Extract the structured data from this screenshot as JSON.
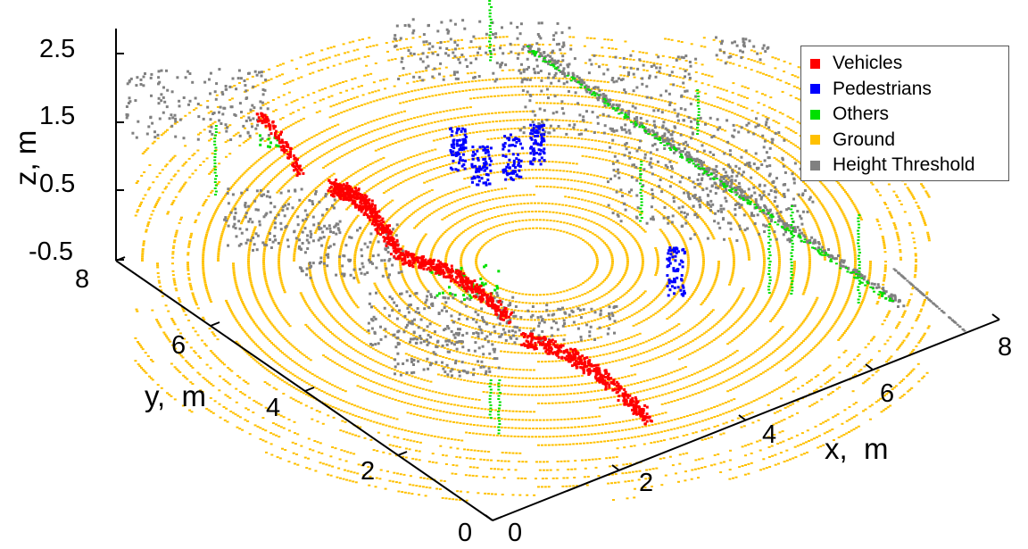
{
  "chart_data": {
    "type": "scatter",
    "title": "",
    "xlabel": "x,  m",
    "ylabel": "y,  m",
    "zlabel": "z,  m",
    "xlim": [
      0,
      8
    ],
    "ylim": [
      0,
      8
    ],
    "zlim": [
      -0.5,
      2.5
    ],
    "x_ticks": [
      "0",
      "2",
      "4",
      "6",
      "8"
    ],
    "y_ticks": [
      "0",
      "2",
      "4",
      "6",
      "8"
    ],
    "z_ticks": [
      "-0.5",
      "0.5",
      "1.5",
      "2.5"
    ],
    "legend_position": "top-right",
    "grid": false,
    "series": [
      {
        "name": "Vehicles",
        "color": "#ff0000"
      },
      {
        "name": "Pedestrians",
        "color": "#0000ff"
      },
      {
        "name": "Others",
        "color": "#00e000"
      },
      {
        "name": "Ground",
        "color": "#ffc000"
      },
      {
        "name": "Height Threshold",
        "color": "#808080"
      }
    ]
  }
}
